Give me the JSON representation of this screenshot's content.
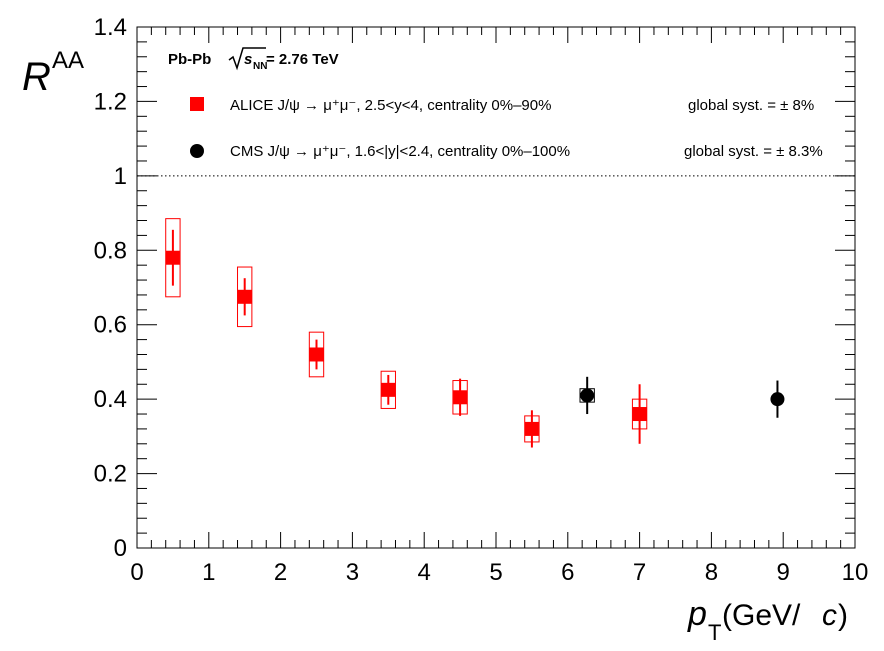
{
  "chart_data": {
    "type": "scatter",
    "x_range": [
      0,
      10
    ],
    "y_range": [
      0,
      1.4
    ],
    "x_ticks": [
      "0",
      "1",
      "2",
      "3",
      "4",
      "5",
      "6",
      "7",
      "8",
      "9",
      "10"
    ],
    "y_ticks": [
      "0",
      "0.2",
      "0.4",
      "0.6",
      "0.8",
      "1",
      "1.2",
      "1.4"
    ],
    "reference_line_y": 1,
    "xlabel": {
      "main": "p",
      "sub": "T",
      "unit_open": " (GeV/",
      "unit_italic": "c",
      "unit_close": ")"
    },
    "ylabel": {
      "main": "R",
      "sub": "AA"
    },
    "header": {
      "system": "Pb-Pb",
      "energy_symbol": "s",
      "energy_sub": "NN",
      "energy_value": " = 2.76 TeV"
    },
    "series": [
      {
        "name": "ALICE",
        "legend_text": "ALICE J/ψ → μ⁺μ⁻, 2.5<y<4, centrality 0%–90%",
        "global_syst": "global syst. = ± 8%",
        "color": "#ff0000",
        "marker": "square",
        "points": [
          {
            "x": 0.5,
            "y": 0.78,
            "stat": 0.075,
            "sys": 0.105,
            "x_halfwidth": 0.1
          },
          {
            "x": 1.5,
            "y": 0.675,
            "stat": 0.05,
            "sys": 0.08,
            "x_halfwidth": 0.1
          },
          {
            "x": 2.5,
            "y": 0.52,
            "stat": 0.04,
            "sys": 0.06,
            "x_halfwidth": 0.1
          },
          {
            "x": 3.5,
            "y": 0.425,
            "stat": 0.04,
            "sys": 0.05,
            "x_halfwidth": 0.1
          },
          {
            "x": 4.5,
            "y": 0.405,
            "stat": 0.05,
            "sys": 0.045,
            "x_halfwidth": 0.1
          },
          {
            "x": 5.5,
            "y": 0.32,
            "stat": 0.05,
            "sys": 0.035,
            "x_halfwidth": 0.1
          },
          {
            "x": 7.0,
            "y": 0.36,
            "stat": 0.08,
            "sys": 0.04,
            "x_halfwidth": 0.1
          }
        ]
      },
      {
        "name": "CMS",
        "legend_text": "CMS J/ψ → μ⁺μ⁻, 1.6<|y|<2.4, centrality 0%–100%",
        "global_syst": "global syst. = ± 8.3%",
        "color": "#000000",
        "marker": "circle",
        "points": [
          {
            "x": 6.27,
            "y": 0.41,
            "stat": 0.05,
            "sys": 0.018,
            "x_halfwidth": 0.1
          },
          {
            "x": 8.92,
            "y": 0.4,
            "stat": 0.05,
            "sys": 0.01,
            "x_halfwidth": 0.04
          }
        ]
      }
    ],
    "grid": false
  }
}
